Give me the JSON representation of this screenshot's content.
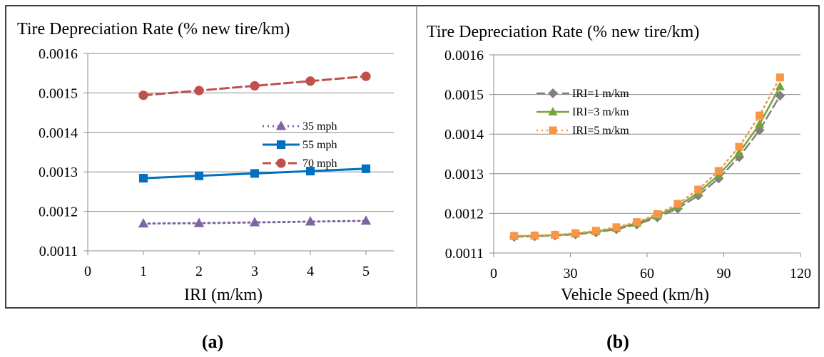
{
  "chart_data": [
    {
      "type": "line",
      "title": "Tire Depreciation Rate (% new tire/km)",
      "xlabel": "IRI (m/km)",
      "ylabel": "",
      "x": [
        1,
        2,
        3,
        4,
        5
      ],
      "xlim": [
        0,
        5.5
      ],
      "ylim": [
        0.0011,
        0.0016
      ],
      "xticks": [
        "0",
        "1",
        "2",
        "3",
        "4",
        "5"
      ],
      "yticks": [
        "0.0011",
        "0.0012",
        "0.0013",
        "0.0014",
        "0.0015",
        "0.0016"
      ],
      "grid": "horizontal",
      "legend_position": "right",
      "caption": "(a)",
      "series": [
        {
          "name": "35 mph",
          "values": [
            0.001169,
            0.00117,
            0.001172,
            0.001174,
            0.001176
          ],
          "color": "#8064a2",
          "dash": "dotted",
          "marker": "triangle"
        },
        {
          "name": "55 mph",
          "values": [
            0.001284,
            0.00129,
            0.001296,
            0.001302,
            0.001308
          ],
          "color": "#0070c0",
          "dash": "solid",
          "marker": "square"
        },
        {
          "name": "70 mph",
          "values": [
            0.001494,
            0.001506,
            0.001518,
            0.00153,
            0.001542
          ],
          "color": "#c0504d",
          "dash": "dashed",
          "marker": "circle"
        }
      ]
    },
    {
      "type": "line",
      "title": "Tire Depreciation Rate (% new tire/km)",
      "xlabel": "Vehicle Speed (km/h)",
      "ylabel": "",
      "x": [
        8,
        16,
        24,
        32,
        40,
        48,
        56,
        64,
        72,
        80,
        88,
        96,
        104,
        112
      ],
      "xlim": [
        0,
        120
      ],
      "ylim": [
        0.0011,
        0.0016
      ],
      "xticks": [
        "0",
        "30",
        "60",
        "90",
        "120"
      ],
      "yticks": [
        "0.0011",
        "0.0012",
        "0.0013",
        "0.0014",
        "0.0015",
        "0.0016"
      ],
      "grid": "horizontal",
      "legend_position": "top-left",
      "caption": "(b)",
      "series": [
        {
          "name": "IRI=1 m/km",
          "values": [
            0.001141,
            0.001142,
            0.001144,
            0.001147,
            0.001152,
            0.00116,
            0.001172,
            0.00119,
            0.001212,
            0.001245,
            0.001288,
            0.001342,
            0.00141,
            0.001497
          ],
          "color": "#808080",
          "dash": "dashed",
          "marker": "diamond"
        },
        {
          "name": "IRI=3 m/km",
          "values": [
            0.001142,
            0.001143,
            0.001145,
            0.001148,
            0.001154,
            0.001162,
            0.001175,
            0.001194,
            0.001218,
            0.001252,
            0.001297,
            0.001353,
            0.001425,
            0.00152
          ],
          "color": "#77a33b",
          "dash": "solid",
          "marker": "triangle"
        },
        {
          "name": "IRI=5 m/km",
          "values": [
            0.001143,
            0.001144,
            0.001146,
            0.00115,
            0.001156,
            0.001165,
            0.001178,
            0.001198,
            0.001224,
            0.00126,
            0.001307,
            0.001368,
            0.001447,
            0.001543
          ],
          "color": "#f79646",
          "dash": "dotted",
          "marker": "square"
        }
      ]
    }
  ]
}
